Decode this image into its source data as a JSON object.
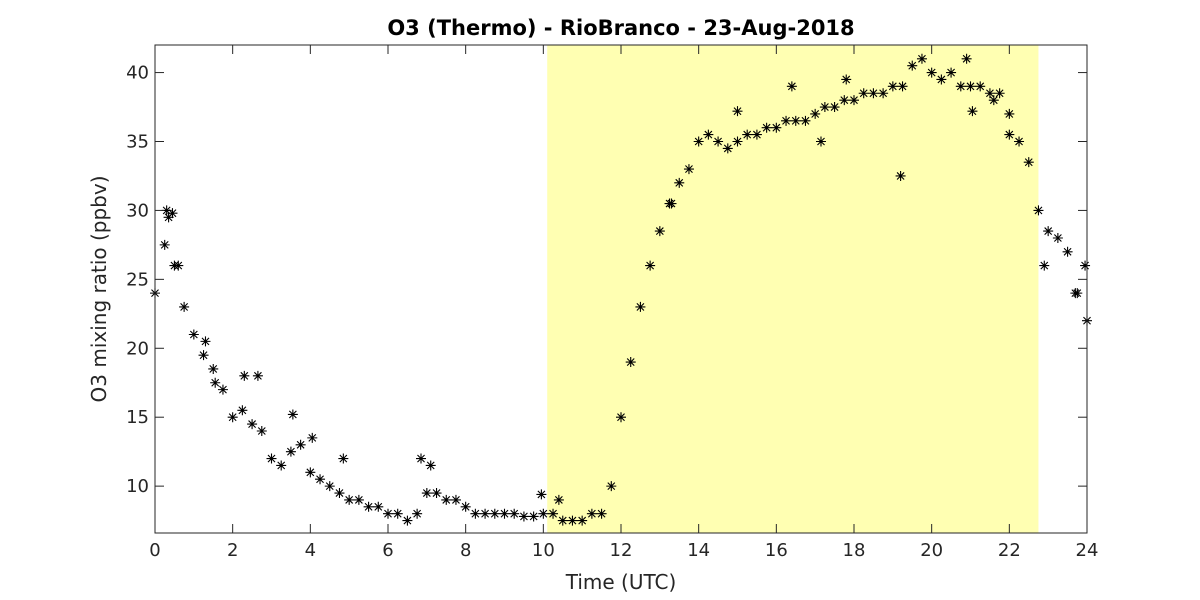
{
  "chart_data": {
    "type": "scatter",
    "title": "O3 (Thermo) - RioBranco - 23-Aug-2018",
    "xlabel": "Time (UTC)",
    "ylabel": "O3 mixing ratio (ppbv)",
    "xlim": [
      0,
      24
    ],
    "ylim": [
      6.6,
      42
    ],
    "xticks": [
      "0",
      "2",
      "4",
      "6",
      "8",
      "10",
      "12",
      "14",
      "16",
      "18",
      "20",
      "22",
      "24"
    ],
    "yticks": [
      "10",
      "15",
      "20",
      "25",
      "30",
      "35",
      "40"
    ],
    "grid": false,
    "legend": "none",
    "marker": "asterisk",
    "marker_color": "#000000",
    "highlight_band": {
      "x_start": 10.1,
      "x_end": 22.75,
      "color": "#ffffb2"
    },
    "series": [
      {
        "x": [
          0.0,
          0.25,
          0.5,
          0.75,
          1.0,
          1.25,
          1.5,
          1.75,
          2.0,
          2.25,
          2.5,
          2.75,
          3.0,
          3.25,
          3.5,
          3.75,
          4.0,
          4.25,
          4.5,
          4.75,
          5.0,
          5.25,
          5.5,
          5.75,
          6.0,
          6.25,
          6.5,
          6.75,
          7.0,
          7.25,
          7.5,
          7.75,
          8.0,
          8.25,
          8.5,
          8.75,
          9.0,
          9.25,
          9.5,
          9.75,
          10.0,
          10.25,
          10.5,
          10.75,
          11.0,
          11.25,
          11.5,
          11.75,
          12.0,
          12.25,
          12.5,
          12.75,
          13.0,
          13.25,
          13.5,
          13.75,
          14.0,
          14.25,
          14.5,
          14.75,
          15.0,
          15.25,
          15.5,
          15.75,
          16.0,
          16.25,
          16.5,
          16.75,
          17.0,
          17.25,
          17.5,
          17.75,
          18.0,
          18.25,
          18.5,
          18.75,
          19.0,
          19.25,
          19.5,
          19.75,
          20.0,
          20.25,
          20.5,
          20.75,
          21.0,
          21.25,
          21.5,
          21.75,
          22.0,
          22.25,
          22.5,
          22.75,
          23.0,
          23.25,
          23.5,
          23.75,
          24.0
        ],
        "y": [
          24,
          27.5,
          26,
          23,
          21,
          19.5,
          18.5,
          17,
          15,
          15.5,
          14.5,
          14,
          12,
          11.5,
          12.5,
          13,
          11,
          10.5,
          10,
          9.5,
          9,
          9,
          8.5,
          8.5,
          8,
          8,
          7.5,
          8,
          9.5,
          9.5,
          9,
          9,
          8.5,
          8,
          8,
          8,
          8,
          8,
          7.8,
          7.8,
          8,
          8,
          7.5,
          7.5,
          7.5,
          8,
          8,
          10,
          15,
          19,
          23,
          26,
          28.5,
          30.5,
          32,
          33,
          35,
          35.5,
          35,
          34.5,
          35,
          35.5,
          35.5,
          36,
          36,
          36.5,
          36.5,
          36.5,
          37,
          37.5,
          37.5,
          38,
          38,
          38.5,
          38.5,
          38.5,
          39,
          39,
          40.5,
          41,
          40,
          39.5,
          40,
          39,
          39,
          39,
          38.5,
          38.5,
          37,
          35,
          33.5,
          30,
          28.5,
          28,
          27,
          24,
          22
        ]
      },
      {
        "x": [
          0.3,
          0.35,
          0.45,
          0.6,
          1.3,
          1.55,
          2.3,
          2.65,
          3.55,
          4.05,
          4.85,
          6.85,
          7.1,
          9.95,
          10.4,
          13.3,
          15.0,
          16.4,
          17.15,
          17.8,
          19.2,
          20.9,
          21.05,
          21.6,
          22.0,
          22.9,
          23.7,
          23.95
        ],
        "y": [
          30,
          29.5,
          29.8,
          26,
          20.5,
          17.5,
          18,
          18,
          15.2,
          13.5,
          12,
          12,
          11.5,
          9.4,
          9,
          30.5,
          37.2,
          39,
          35,
          39.5,
          32.5,
          41,
          37.2,
          38,
          35.5,
          26,
          24,
          26
        ]
      }
    ]
  }
}
